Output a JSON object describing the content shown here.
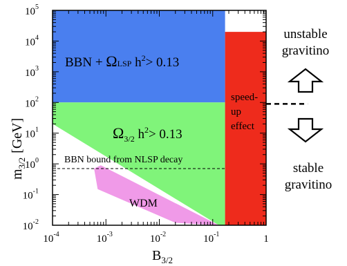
{
  "chart_data": {
    "type": "area",
    "xlabel": "B",
    "xlabel_sub": "3/2",
    "ylabel": "m",
    "ylabel_sub": "3/2",
    "ylabel_unit": "[GeV]",
    "x_scale": "log",
    "y_scale": "log",
    "xlim": [
      0.0001,
      1
    ],
    "ylim": [
      0.01,
      100000
    ],
    "x_ticks": [
      {
        "base": "10",
        "exp": "-4",
        "value": 0.0001
      },
      {
        "base": "10",
        "exp": "-3",
        "value": 0.001
      },
      {
        "base": "10",
        "exp": "-2",
        "value": 0.01
      },
      {
        "base": "10",
        "exp": "-1",
        "value": 0.1
      },
      {
        "base": "1",
        "exp": "",
        "value": 1
      }
    ],
    "y_ticks": [
      {
        "base": "10",
        "exp": "-2",
        "value": 0.01
      },
      {
        "base": "10",
        "exp": "-1",
        "value": 0.1
      },
      {
        "base": "10",
        "exp": "0",
        "value": 1
      },
      {
        "base": "10",
        "exp": "1",
        "value": 10
      },
      {
        "base": "10",
        "exp": "2",
        "value": 100
      },
      {
        "base": "10",
        "exp": "3",
        "value": 1000
      },
      {
        "base": "10",
        "exp": "4",
        "value": 10000
      },
      {
        "base": "10",
        "exp": "5",
        "value": 100000
      }
    ],
    "regions": [
      {
        "label_parts": [
          "BBN + ",
          "Ω",
          "LSP",
          " h",
          "2",
          "> 0.13"
        ],
        "color": "#4a7fef",
        "polygon": [
          [
            0.0001,
            100
          ],
          [
            0.17,
            100
          ],
          [
            0.17,
            100000
          ],
          [
            0.0001,
            100000
          ]
        ]
      },
      {
        "label_parts": [
          "Ω",
          "3/2",
          " h",
          "2",
          "> 0.13"
        ],
        "color": "#80f47a",
        "polygon": [
          [
            0.0001,
            100
          ],
          [
            0.17,
            100
          ],
          [
            0.17,
            0.01
          ],
          [
            0.13,
            0.01
          ],
          [
            0.0001,
            20
          ]
        ]
      },
      {
        "label": "WDM",
        "color": "#f09ae8",
        "polygon": [
          [
            0.0006,
            0.7
          ],
          [
            0.0007,
            0.15
          ],
          [
            0.02,
            0.012
          ],
          [
            0.13,
            0.01
          ],
          [
            0.0008,
            0.9
          ]
        ]
      },
      {
        "label_lines": [
          "speed-",
          "up",
          "effect"
        ],
        "color": "#ee2b1c",
        "polygon": [
          [
            0.17,
            20000
          ],
          [
            1,
            20000
          ],
          [
            1,
            0.01
          ],
          [
            0.17,
            0.01
          ]
        ]
      }
    ],
    "lines": [
      {
        "label": "BBN bound from NLSP decay",
        "style": "dashed",
        "y": 0.7,
        "x_range": [
          0.0001,
          0.17
        ]
      },
      {
        "style": "dashed",
        "y": 90,
        "x_range": [
          1,
          6
        ]
      }
    ]
  },
  "annotations": {
    "unstable": [
      "unstable",
      "gravitino"
    ],
    "stable": [
      "stable",
      "gravitino"
    ]
  }
}
